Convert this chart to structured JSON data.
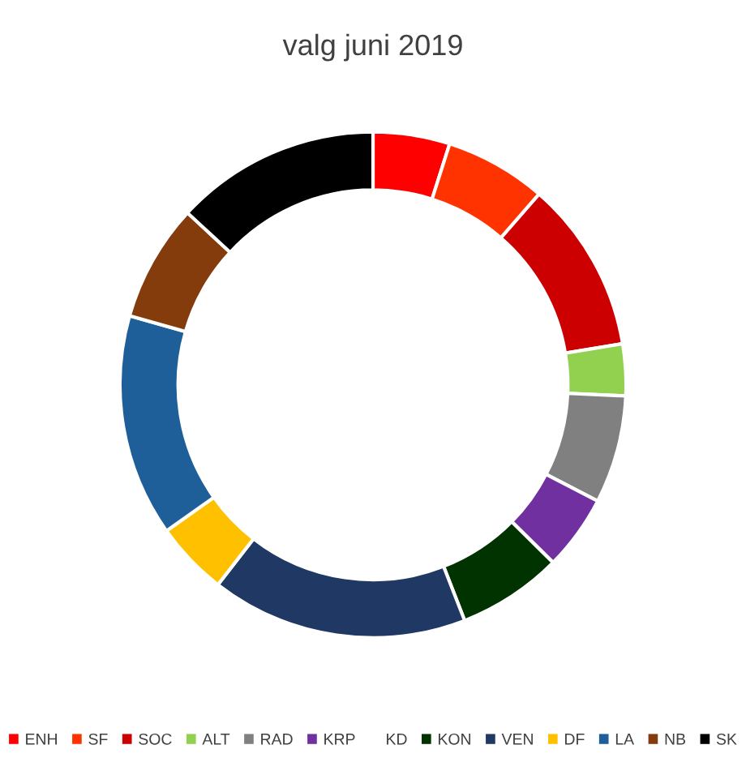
{
  "chart_data": {
    "type": "donut",
    "title": "valg juni 2019",
    "categories": [
      "ENH",
      "SF",
      "SOC",
      "ALT",
      "RAD",
      "KRP",
      "KD",
      "KON",
      "VEN",
      "DF",
      "LA",
      "NB",
      "SK"
    ],
    "values": [
      4.9,
      6.5,
      11,
      3.3,
      6.9,
      4.8,
      0,
      6.7,
      16.4,
      4.7,
      14.2,
      7.5,
      13.1
    ],
    "colors": [
      "#ff0000",
      "#ff3300",
      "#cc0000",
      "#92d050",
      "#808080",
      "#7030a0",
      "#ffffff",
      "#003300",
      "#1f3864",
      "#ffc000",
      "#1f5f99",
      "#843c0c",
      "#000000"
    ],
    "legend": "bottom"
  }
}
